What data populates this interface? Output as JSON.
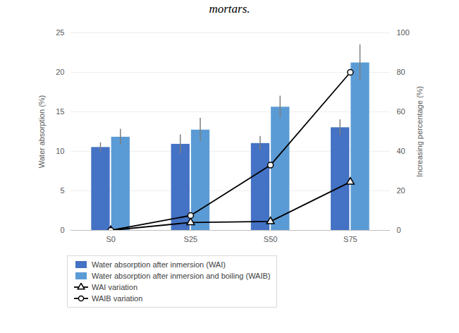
{
  "chart_data": {
    "type": "bar",
    "title": "mortars.",
    "categories": [
      "S0",
      "S25",
      "S50",
      "S75"
    ],
    "series": [
      {
        "name": "Water absorption after inmersion (WAI)",
        "type": "bar",
        "color": "#4472c4",
        "values": [
          10.5,
          10.9,
          11.0,
          13.0
        ],
        "errors": [
          0.6,
          1.2,
          0.9,
          1.0
        ]
      },
      {
        "name": "Water absorption after inmersion and boiling (WAIB)",
        "type": "bar",
        "color": "#5b9bd5",
        "values": [
          11.8,
          12.7,
          15.6,
          21.2
        ],
        "errors": [
          1.0,
          1.5,
          1.4,
          2.3
        ]
      },
      {
        "name": "WAI variation",
        "type": "line",
        "axis": "y2",
        "color": "#000000",
        "marker": "triangle",
        "values": [
          0,
          4,
          4.5,
          24.5
        ]
      },
      {
        "name": "WAIB variation",
        "type": "line",
        "axis": "y2",
        "color": "#000000",
        "marker": "circle",
        "values": [
          0,
          7.5,
          33,
          80
        ]
      }
    ],
    "ylabel": "Water absorption (%)",
    "y2label": "Increasing percentage (%)",
    "ylim": [
      0,
      25
    ],
    "yticks": [
      0,
      5,
      10,
      15,
      20,
      25
    ],
    "y2lim": [
      0,
      100
    ],
    "y2ticks": [
      0,
      20,
      40,
      60,
      80,
      100
    ],
    "grid": true
  }
}
